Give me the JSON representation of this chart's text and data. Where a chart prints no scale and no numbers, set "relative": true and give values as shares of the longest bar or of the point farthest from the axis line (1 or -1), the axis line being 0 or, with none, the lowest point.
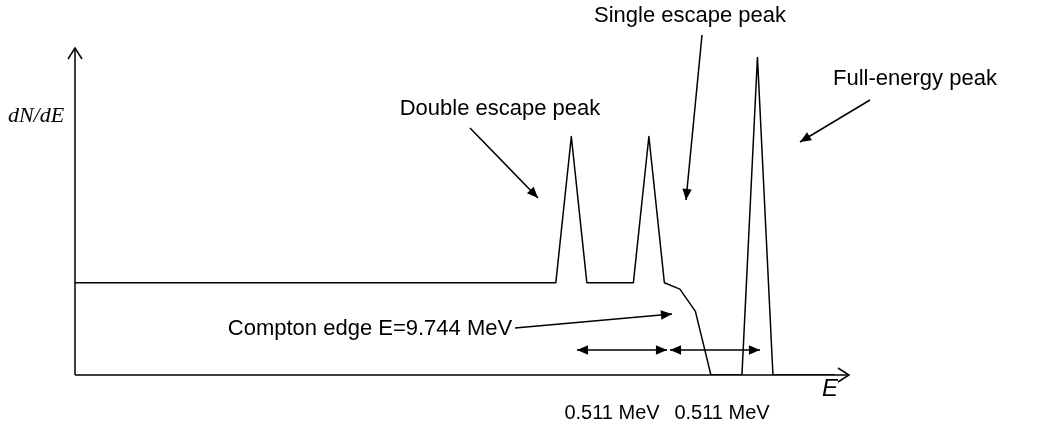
{
  "chart_data": {
    "type": "line",
    "relative": true,
    "xlabel": "E",
    "ylabel": "dN/dE",
    "color": "#000000",
    "legend": false,
    "marker": "none",
    "line_style": "solid",
    "categories": [
      null,
      null,
      null,
      null,
      null,
      null,
      null,
      null,
      null,
      null,
      null,
      null,
      null,
      null,
      null,
      null,
      null,
      null,
      null,
      null,
      null,
      null,
      null,
      null,
      null,
      null,
      null,
      null,
      null,
      null,
      null,
      null,
      null,
      null,
      null,
      null,
      null,
      null,
      null,
      null,
      null,
      null,
      null,
      null,
      null,
      null,
      null,
      null,
      null,
      null
    ],
    "values": [
      0.29,
      0.29,
      0.29,
      0.29,
      0.29,
      0.29,
      0.29,
      0.29,
      0.29,
      0.29,
      0.29,
      0.29,
      0.29,
      0.29,
      0.29,
      0.29,
      0.29,
      0.29,
      0.29,
      0.29,
      0.29,
      0.29,
      0.29,
      0.29,
      0.29,
      0.29,
      0.29,
      0.29,
      0.29,
      0.29,
      0.29,
      0.29,
      0.75,
      0.29,
      0.29,
      0.29,
      0.29,
      0.75,
      0.29,
      0.27,
      0.2,
      0,
      0,
      0,
      1,
      0,
      0,
      0,
      0,
      0
    ],
    "annotations": [
      "Double escape peak",
      "Single escape peak",
      "Full-energy peak",
      "Compton edge E=9.744 MeV",
      "0.511 MeV",
      "0.511 MeV"
    ]
  }
}
